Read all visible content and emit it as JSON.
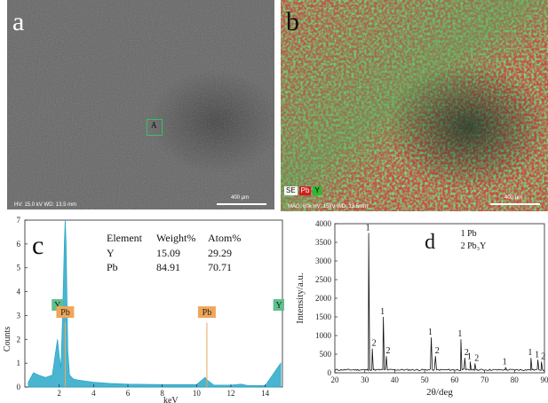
{
  "panels": {
    "a": {
      "letter": "a",
      "info": "HV: 15.0 kV  WD: 13.5 mm",
      "scale": "400 μm",
      "region_label": "A"
    },
    "b": {
      "letter": "b",
      "info": "MAG: 60x  HV: 15kV  WD: 13.5mm",
      "scale": "400 μm",
      "chips": [
        {
          "label": "SE",
          "bg": "#ffffff",
          "fg": "#000000"
        },
        {
          "label": "Pb",
          "bg": "#cc1f1f",
          "fg": "#ffffff"
        },
        {
          "label": "Y",
          "bg": "#2fb82f",
          "fg": "#000000"
        }
      ]
    }
  },
  "chart_data": [
    {
      "type": "line",
      "panel": "c",
      "xlabel": "keV",
      "ylabel": "Counts",
      "xlim": [
        0,
        15
      ],
      "ylim": [
        0,
        7
      ],
      "xticks": [
        2,
        4,
        6,
        8,
        10,
        12,
        14
      ],
      "yticks": [
        0,
        1,
        2,
        3,
        4,
        5,
        6,
        7
      ],
      "x": [
        0.2,
        0.5,
        0.8,
        1.2,
        1.6,
        1.9,
        2.0,
        2.1,
        2.2,
        2.3,
        2.35,
        2.4,
        2.5,
        2.6,
        2.8,
        3.0,
        3.5,
        4.0,
        5.0,
        6.0,
        8.0,
        10.0,
        10.5,
        10.6,
        11.0,
        12.0,
        12.6,
        13.0,
        14.0,
        14.9
      ],
      "y": [
        0.2,
        0.6,
        0.5,
        0.4,
        0.5,
        2.0,
        1.3,
        0.8,
        3.0,
        6.0,
        7.0,
        6.0,
        1.5,
        0.5,
        0.35,
        0.3,
        0.25,
        0.2,
        0.15,
        0.12,
        0.1,
        0.1,
        0.4,
        0.3,
        0.08,
        0.08,
        0.12,
        0.06,
        0.06,
        1.0
      ],
      "peak_labels": [
        {
          "label": "Y",
          "x": 1.9,
          "color": "#5fbf8f"
        },
        {
          "label": "Pb",
          "x": 2.35,
          "color": "#f0a65a"
        },
        {
          "label": "Pb",
          "x": 10.6,
          "color": "#f0a65a"
        },
        {
          "label": "Y",
          "x": 14.9,
          "color": "#5fbf8f"
        }
      ],
      "table": {
        "headers": [
          "Element",
          "Weight%",
          "Atom%"
        ],
        "rows": [
          [
            "Y",
            "15.09",
            "29.29"
          ],
          [
            "Pb",
            "84.91",
            "70.71"
          ]
        ]
      },
      "color": "#2aa8c8",
      "letter": "c"
    },
    {
      "type": "line",
      "panel": "d",
      "xlabel": "2θ/deg",
      "ylabel": "Intensity/a.u.",
      "xlim": [
        20,
        90
      ],
      "ylim": [
        0,
        4000
      ],
      "xticks": [
        20,
        30,
        40,
        50,
        60,
        70,
        80,
        90
      ],
      "yticks": [
        0,
        500,
        1000,
        1500,
        2000,
        2500,
        3000,
        3500,
        4000
      ],
      "peaks": [
        {
          "x": 31.3,
          "y": 3750,
          "label": "1"
        },
        {
          "x": 32.5,
          "y": 650,
          "label": "2"
        },
        {
          "x": 36.2,
          "y": 1500,
          "label": "1"
        },
        {
          "x": 37.2,
          "y": 450,
          "label": "2"
        },
        {
          "x": 52.2,
          "y": 950,
          "label": "1"
        },
        {
          "x": 53.6,
          "y": 450,
          "label": "2"
        },
        {
          "x": 62.1,
          "y": 900,
          "label": "1"
        },
        {
          "x": 63.4,
          "y": 400,
          "label": "2"
        },
        {
          "x": 65.2,
          "y": 300,
          "label": "1"
        },
        {
          "x": 66.8,
          "y": 250,
          "label": "2"
        },
        {
          "x": 77.0,
          "y": 150,
          "label": "1"
        },
        {
          "x": 85.5,
          "y": 400,
          "label": "1"
        },
        {
          "x": 87.8,
          "y": 350,
          "label": "1"
        },
        {
          "x": 89.0,
          "y": 300,
          "label": "2"
        }
      ],
      "baseline": 60,
      "legend": [
        "1 Pb",
        "2 Pb₃Y"
      ],
      "color": "#111111",
      "letter": "d"
    }
  ]
}
